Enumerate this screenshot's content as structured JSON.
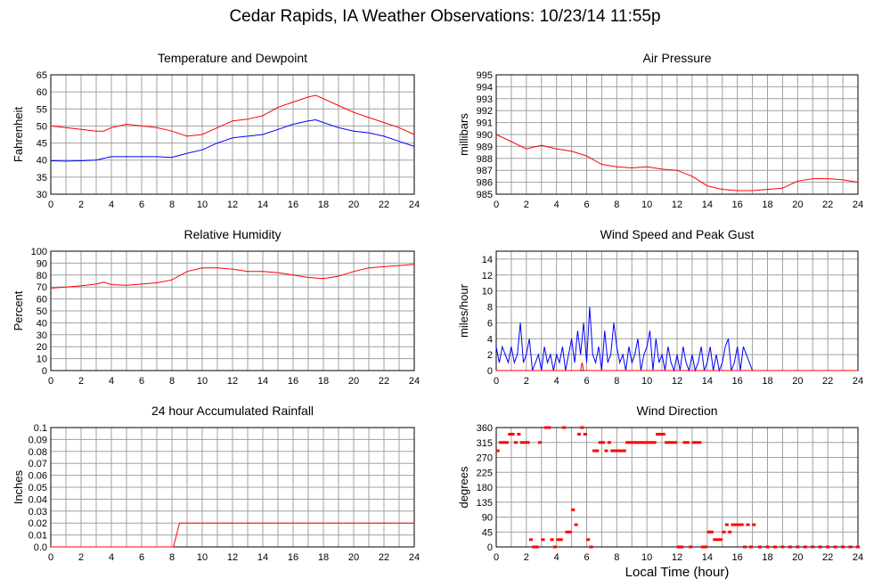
{
  "title": "Cedar Rapids, IA Weather Observations: 10/23/14 11:55p",
  "x_axis_title": "Local Time (hour)",
  "colors": {
    "red": "#ff0000",
    "blue": "#0000ff",
    "grid": "#a0a0a0"
  },
  "chart_data": [
    {
      "type": "line",
      "title": "Temperature and Dewpoint",
      "ylabel": "Fahrenheit",
      "xlim": [
        0,
        24
      ],
      "ylim": [
        30,
        65
      ],
      "xticks": [
        0,
        2,
        4,
        6,
        8,
        10,
        12,
        14,
        16,
        18,
        20,
        22,
        24
      ],
      "yticks": [
        30,
        35,
        40,
        45,
        50,
        55,
        60,
        65
      ],
      "ytick_labels": [
        "30",
        "35",
        "40",
        "45",
        "50",
        "55",
        "60",
        "65"
      ],
      "series": [
        {
          "color": "#ff0000",
          "x": [
            0,
            1,
            2,
            3,
            3.5,
            4,
            5,
            6,
            7,
            8,
            9,
            10,
            11,
            12,
            13,
            14,
            15,
            16,
            17,
            17.5,
            18,
            19,
            20,
            21,
            22,
            23,
            24
          ],
          "y": [
            50,
            49.5,
            49,
            48.5,
            48.5,
            49.5,
            50.5,
            50,
            49.5,
            48.5,
            47,
            47.5,
            49.5,
            51.5,
            52,
            53,
            55.5,
            57,
            58.5,
            59,
            58,
            56,
            54,
            52.5,
            51,
            49.5,
            47.5
          ]
        },
        {
          "color": "#0000ff",
          "x": [
            0,
            1,
            2,
            3,
            3.5,
            4,
            5,
            6,
            7,
            8,
            9,
            10,
            11,
            12,
            13,
            14,
            15,
            16,
            17,
            17.5,
            18,
            19,
            20,
            21,
            22,
            23,
            24
          ],
          "y": [
            39.8,
            39.7,
            39.8,
            40,
            40.5,
            41,
            41,
            41,
            41,
            40.8,
            42,
            43,
            45,
            46.5,
            47,
            47.5,
            49,
            50.5,
            51.5,
            51.8,
            51,
            49.5,
            48.5,
            48,
            47,
            45.5,
            44
          ]
        }
      ]
    },
    {
      "type": "line",
      "title": "Air Pressure",
      "ylabel": "millibars",
      "xlim": [
        0,
        24
      ],
      "ylim": [
        985,
        995
      ],
      "xticks": [
        0,
        2,
        4,
        6,
        8,
        10,
        12,
        14,
        16,
        18,
        20,
        22,
        24
      ],
      "yticks": [
        985,
        986,
        987,
        988,
        989,
        990,
        991,
        992,
        993,
        994,
        995
      ],
      "ytick_labels": [
        "985",
        "986",
        "987",
        "988",
        "989",
        "990",
        "991",
        "992",
        "993",
        "994",
        "995"
      ],
      "series": [
        {
          "color": "#ff0000",
          "x": [
            0,
            1,
            2,
            3,
            4,
            5,
            6,
            7,
            8,
            9,
            10,
            11,
            12,
            13,
            14,
            15,
            16,
            17,
            18,
            19,
            20,
            21,
            22,
            23,
            24
          ],
          "y": [
            990,
            989.4,
            988.8,
            989.1,
            988.8,
            988.6,
            988.2,
            987.5,
            987.3,
            987.2,
            987.3,
            987.1,
            987,
            986.5,
            985.7,
            985.4,
            985.3,
            985.3,
            985.4,
            985.5,
            986.1,
            986.3,
            986.3,
            986.2,
            986
          ]
        }
      ]
    },
    {
      "type": "line",
      "title": "Relative Humidity",
      "ylabel": "Percent",
      "xlim": [
        0,
        24
      ],
      "ylim": [
        0,
        100
      ],
      "xticks": [
        0,
        2,
        4,
        6,
        8,
        10,
        12,
        14,
        16,
        18,
        20,
        22,
        24
      ],
      "yticks": [
        0,
        10,
        20,
        30,
        40,
        50,
        60,
        70,
        80,
        90,
        100
      ],
      "ytick_labels": [
        "0",
        "10",
        "20",
        "30",
        "40",
        "50",
        "60",
        "70",
        "80",
        "90",
        "100"
      ],
      "series": [
        {
          "color": "#ff0000",
          "x": [
            0,
            1,
            2,
            3,
            3.5,
            4,
            5,
            6,
            7,
            8,
            9,
            10,
            11,
            12,
            13,
            14,
            15,
            16,
            17,
            18,
            19,
            20,
            21,
            22,
            23,
            24
          ],
          "y": [
            69,
            70,
            71,
            72.5,
            74,
            72,
            71.5,
            72.5,
            73.5,
            76,
            83,
            86,
            86,
            85,
            83,
            83,
            82,
            80,
            78,
            77,
            79,
            83,
            86,
            87,
            88,
            89
          ]
        }
      ]
    },
    {
      "type": "line",
      "title": "Wind Speed and Peak Gust",
      "ylabel": "miles/hour",
      "xlim": [
        0,
        24
      ],
      "ylim": [
        0,
        15
      ],
      "xticks": [
        0,
        2,
        4,
        6,
        8,
        10,
        12,
        14,
        16,
        18,
        20,
        22,
        24
      ],
      "yticks": [
        0,
        2,
        4,
        6,
        8,
        10,
        12,
        14
      ],
      "ytick_labels": [
        "0",
        "2",
        "4",
        "6",
        "8",
        "10",
        "12",
        "14"
      ],
      "series": [
        {
          "color": "#0000ff",
          "x": [
            0,
            0.2,
            0.4,
            0.6,
            0.8,
            1,
            1.2,
            1.4,
            1.6,
            1.8,
            2,
            2.2,
            2.4,
            2.6,
            2.8,
            3,
            3.2,
            3.4,
            3.6,
            3.8,
            4,
            4.2,
            4.4,
            4.6,
            4.8,
            5,
            5.2,
            5.4,
            5.6,
            5.8,
            6,
            6.2,
            6.4,
            6.6,
            6.8,
            7,
            7.2,
            7.4,
            7.6,
            7.8,
            8,
            8.2,
            8.4,
            8.6,
            8.8,
            9,
            9.2,
            9.4,
            9.6,
            9.8,
            10,
            10.2,
            10.4,
            10.6,
            10.8,
            11,
            11.2,
            11.4,
            11.6,
            11.8,
            12,
            12.2,
            12.4,
            12.6,
            12.8,
            13,
            13.2,
            13.4,
            13.6,
            13.8,
            14,
            14.2,
            14.4,
            14.6,
            14.8,
            15,
            15.2,
            15.4,
            15.6,
            15.8,
            16,
            16.2,
            16.4,
            16.6,
            16.8,
            17,
            17.5,
            18,
            20,
            22,
            24
          ],
          "y": [
            3,
            1,
            3,
            2,
            1,
            3,
            1,
            2,
            6,
            1,
            2,
            4,
            0,
            1,
            2,
            0,
            3,
            1,
            2,
            0,
            2,
            1,
            3,
            0,
            2,
            4,
            1,
            5,
            2,
            6,
            1,
            8,
            2,
            1,
            3,
            0,
            5,
            1,
            2,
            6,
            3,
            1,
            2,
            0,
            3,
            1,
            2,
            4,
            0,
            2,
            3,
            5,
            0,
            4,
            1,
            2,
            0,
            3,
            1,
            0,
            2,
            0,
            3,
            1,
            0,
            2,
            0,
            1,
            3,
            0,
            1,
            3,
            0,
            2,
            0,
            1,
            3,
            4,
            0,
            1,
            3,
            0,
            3,
            2,
            1,
            0,
            0,
            0,
            0,
            0,
            0
          ]
        },
        {
          "color": "#ff0000",
          "x": [
            0,
            5.6,
            5.7,
            5.8,
            17,
            24
          ],
          "y": [
            0,
            0,
            1,
            0,
            0,
            0
          ]
        }
      ]
    },
    {
      "type": "line",
      "title": "24 hour Accumulated Rainfall",
      "ylabel": "Inches",
      "xlim": [
        0,
        24
      ],
      "ylim": [
        0,
        0.1
      ],
      "xticks": [
        0,
        2,
        4,
        6,
        8,
        10,
        12,
        14,
        16,
        18,
        20,
        22,
        24
      ],
      "yticks": [
        0,
        0.01,
        0.02,
        0.03,
        0.04,
        0.05,
        0.06,
        0.07,
        0.08,
        0.09,
        0.1
      ],
      "ytick_labels": [
        "0.0",
        "0.01",
        "0.02",
        "0.03",
        "0.04",
        "0.05",
        "0.06",
        "0.07",
        "0.08",
        "0.09",
        "0.1"
      ],
      "series": [
        {
          "color": "#ff0000",
          "x": [
            0,
            8.1,
            8.3,
            8.5,
            24
          ],
          "y": [
            0,
            0,
            0.01,
            0.02,
            0.02
          ]
        }
      ]
    },
    {
      "type": "scatter",
      "title": "Wind Direction",
      "ylabel": "degrees",
      "xlabel": "Local Time (hour)",
      "xlim": [
        0,
        24
      ],
      "ylim": [
        0,
        360
      ],
      "xticks": [
        0,
        2,
        4,
        6,
        8,
        10,
        12,
        14,
        16,
        18,
        20,
        22,
        24
      ],
      "yticks": [
        0,
        45,
        90,
        135,
        180,
        225,
        270,
        315,
        360
      ],
      "ytick_labels": [
        "0",
        "45",
        "90",
        "135",
        "180",
        "225",
        "270",
        "315",
        "360"
      ],
      "series": [
        {
          "color": "#ff0000",
          "x": [
            0.1,
            0.3,
            0.5,
            0.7,
            0.9,
            1.1,
            1.3,
            1.5,
            1.7,
            1.9,
            2.1,
            2.3,
            2.5,
            2.7,
            2.9,
            3.1,
            3.3,
            3.5,
            3.7,
            3.9,
            4.1,
            4.3,
            4.5,
            4.7,
            4.9,
            5.1,
            5.3,
            5.5,
            5.7,
            5.9,
            6.1,
            6.3,
            6.5,
            6.7,
            6.9,
            7.1,
            7.3,
            7.5,
            7.7,
            7.9,
            8.1,
            8.3,
            8.5,
            8.7,
            8.9,
            9.1,
            9.3,
            9.5,
            9.7,
            9.9,
            10.1,
            10.3,
            10.5,
            10.7,
            10.9,
            11.1,
            11.3,
            11.5,
            11.7,
            11.9,
            12.1,
            12.3,
            12.5,
            12.7,
            12.9,
            13.1,
            13.3,
            13.5,
            13.7,
            13.9,
            14.1,
            14.3,
            14.5,
            14.7,
            14.9,
            15.1,
            15.3,
            15.5,
            15.7,
            15.9,
            16.1,
            16.3,
            16.5,
            16.7,
            16.9,
            17.1,
            17.5,
            18,
            18.5,
            19,
            19.5,
            20,
            20.5,
            21,
            21.5,
            22,
            22.5,
            23,
            23.5,
            24
          ],
          "y": [
            290,
            315,
            315,
            315,
            340,
            340,
            315,
            340,
            315,
            315,
            315,
            22,
            0,
            0,
            315,
            22,
            360,
            360,
            22,
            0,
            22,
            22,
            360,
            45,
            45,
            112,
            67,
            340,
            360,
            340,
            22,
            0,
            290,
            290,
            315,
            315,
            290,
            315,
            290,
            290,
            290,
            290,
            290,
            315,
            315,
            315,
            315,
            315,
            315,
            315,
            315,
            315,
            315,
            340,
            340,
            340,
            315,
            315,
            315,
            315,
            0,
            0,
            315,
            315,
            0,
            315,
            315,
            315,
            0,
            0,
            45,
            45,
            22,
            22,
            22,
            45,
            67,
            45,
            67,
            67,
            67,
            67,
            0,
            67,
            0,
            67,
            0,
            0,
            0,
            0,
            0,
            0,
            0,
            0,
            0,
            0,
            0,
            0,
            0,
            0
          ]
        }
      ]
    }
  ]
}
